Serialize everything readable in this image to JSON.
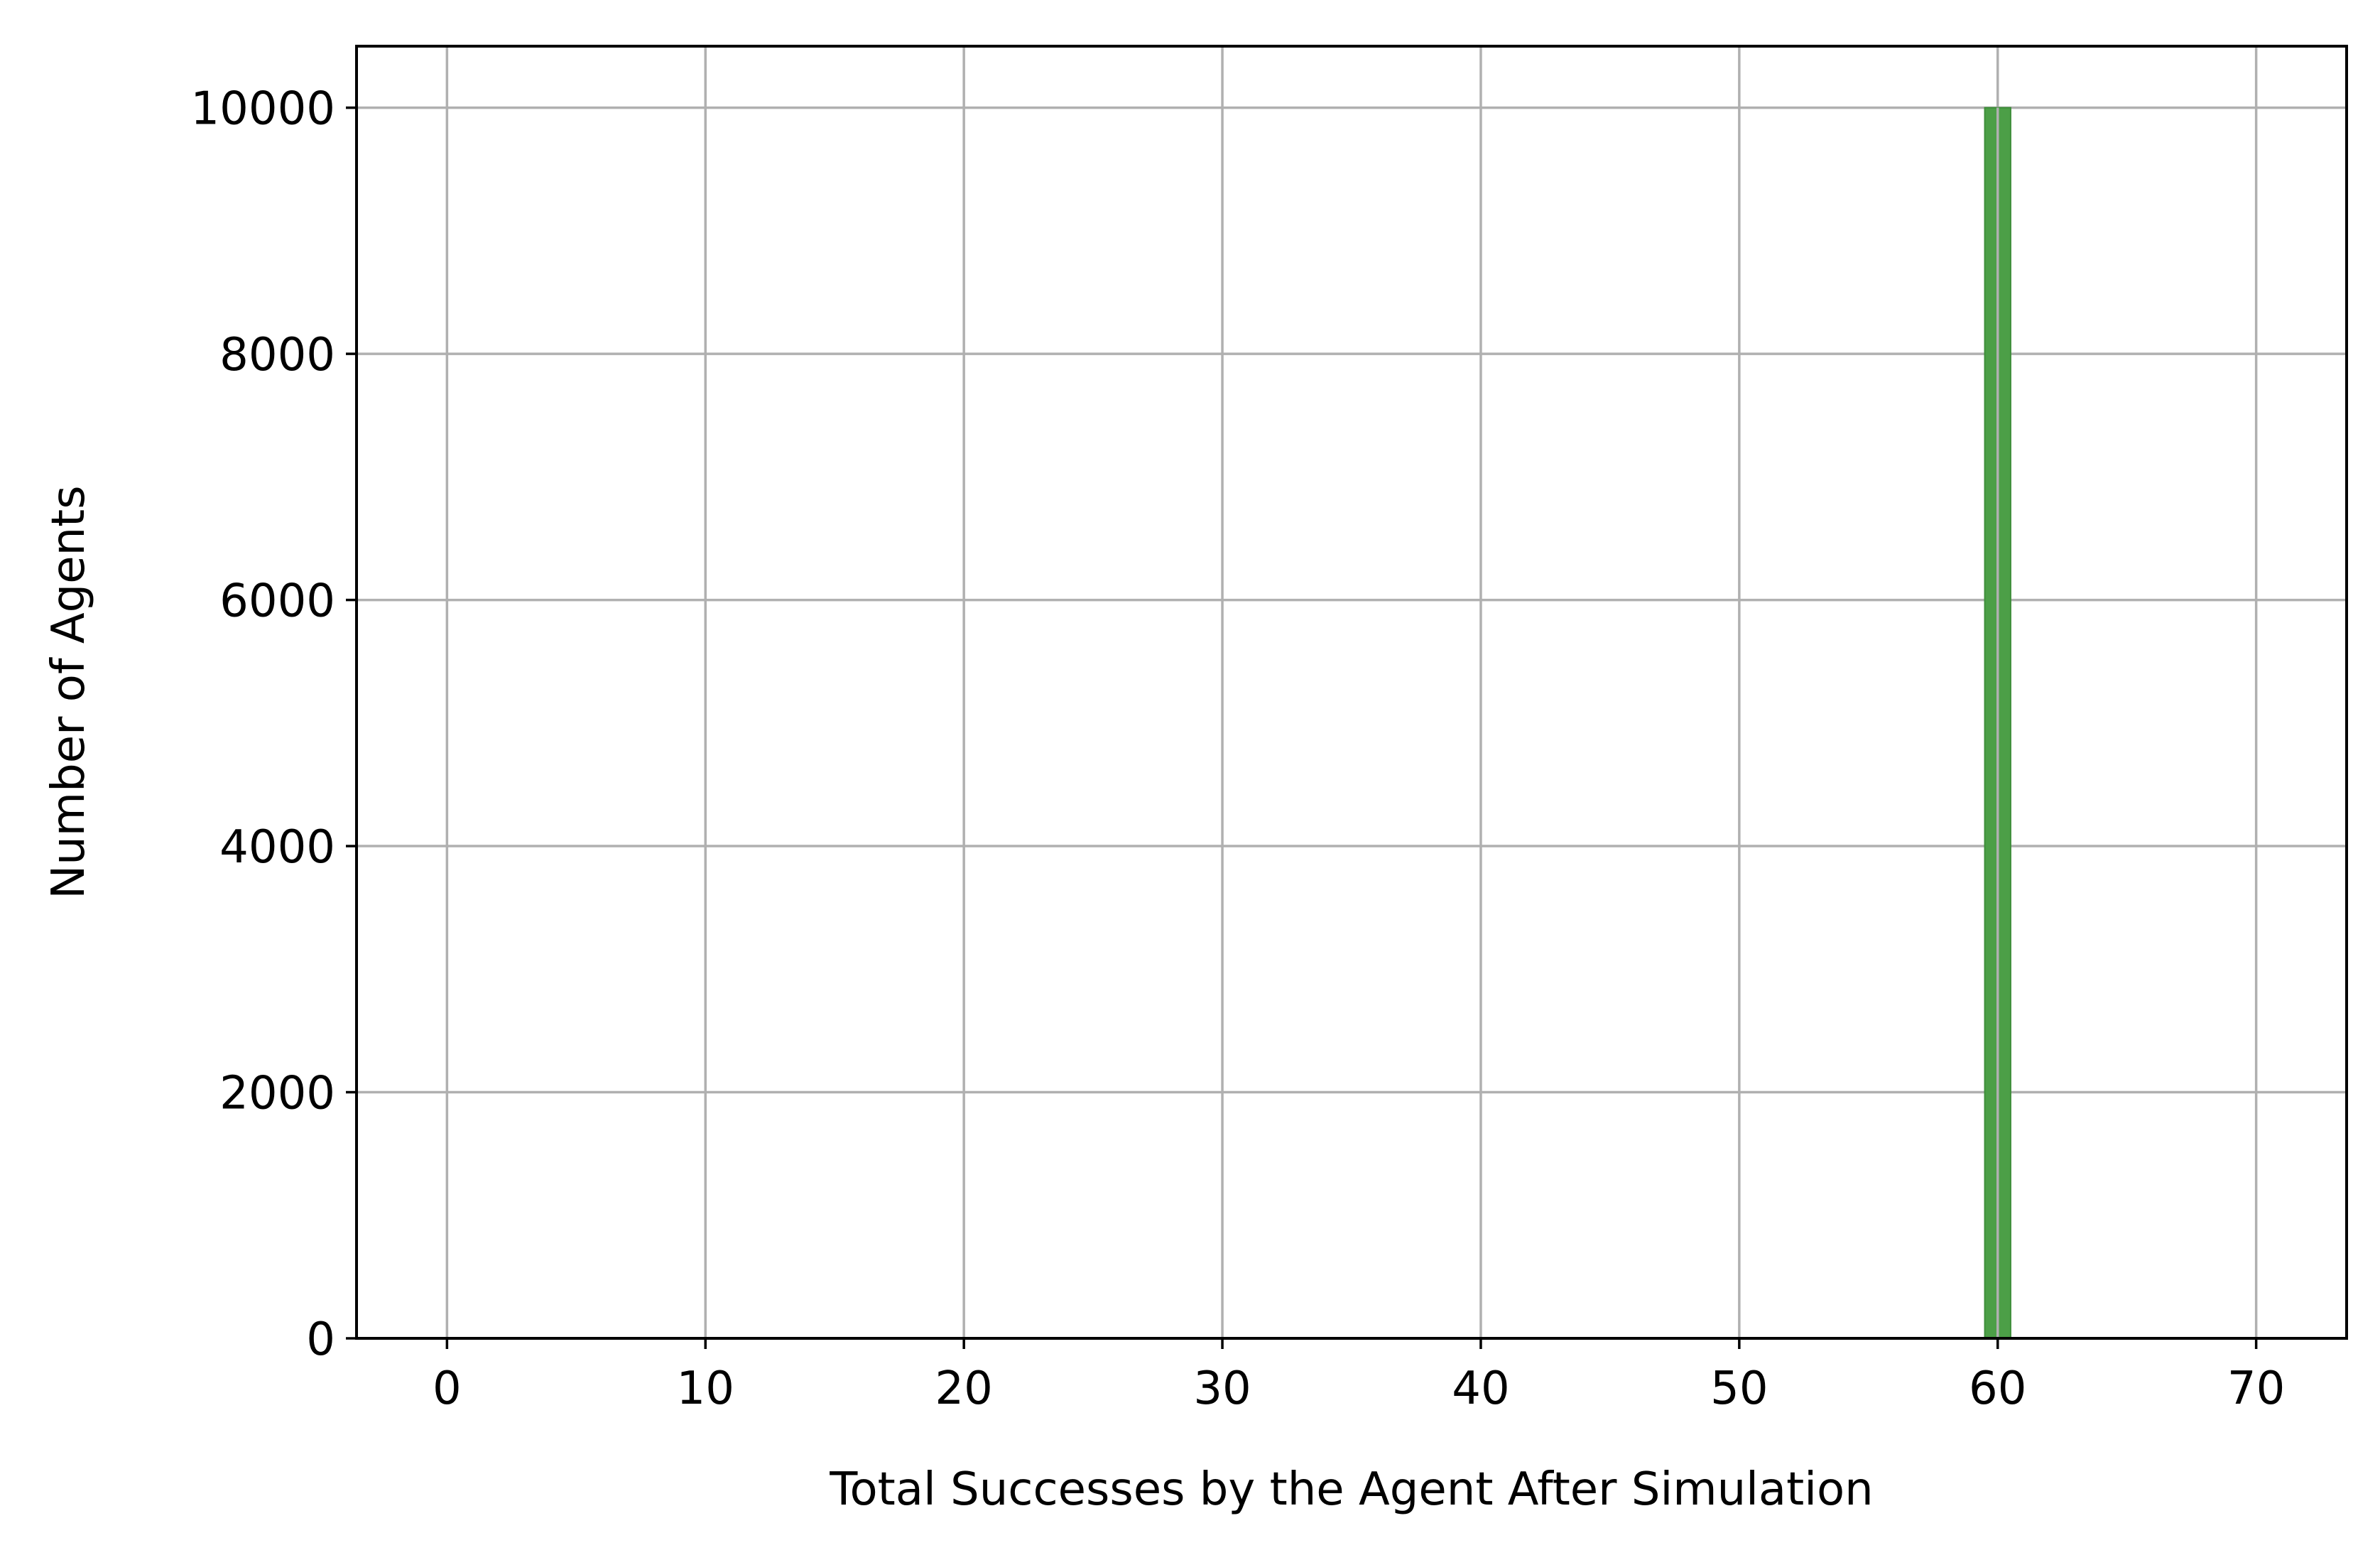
{
  "chart_data": {
    "type": "bar",
    "title": "",
    "xlabel": "Total Successes by the Agent After Simulation",
    "ylabel": "Number of Agents",
    "xlim": [
      -3.5,
      73.5
    ],
    "ylim": [
      0,
      10500
    ],
    "xticks": [
      0,
      10,
      20,
      30,
      40,
      50,
      60,
      70
    ],
    "yticks": [
      0,
      2000,
      4000,
      6000,
      8000,
      10000
    ],
    "grid": true,
    "legend": "none",
    "series": [
      {
        "bins": [
          {
            "x_start": 59.5,
            "x_end": 60.5,
            "value": 10000
          }
        ],
        "color": "#4c9f47"
      }
    ],
    "colors": {
      "bar": "#4c9f47",
      "bar_edge": "#3e8e3a",
      "grid": "#b0b0b0",
      "axes": "#000000"
    }
  }
}
